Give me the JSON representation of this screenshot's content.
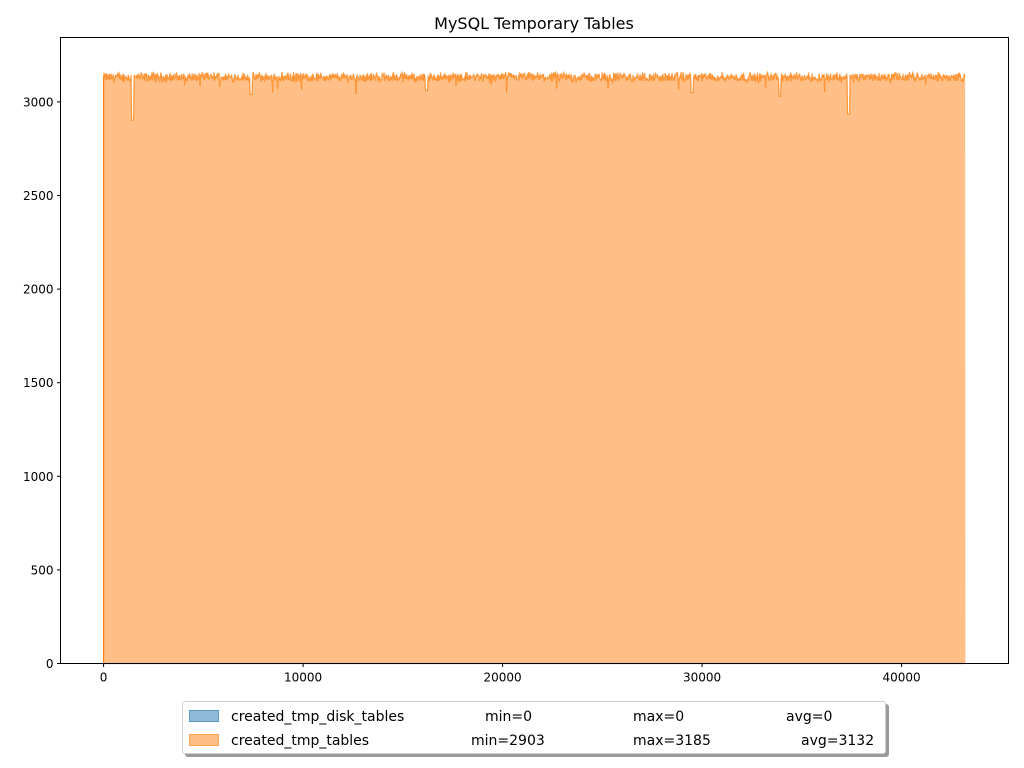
{
  "chart_data": {
    "type": "area",
    "title": "MySQL Temporary Tables",
    "xlabel": "",
    "ylabel": "",
    "xlim": [
      -2160,
      45360
    ],
    "ylim": [
      0,
      3344
    ],
    "x_ticks": [
      0,
      10000,
      20000,
      30000,
      40000
    ],
    "x_tick_labels": [
      "0",
      "10000",
      "20000",
      "30000",
      "40000"
    ],
    "y_ticks": [
      0,
      500,
      1000,
      1500,
      2000,
      2500,
      3000
    ],
    "y_tick_labels": [
      "0",
      "500",
      "1000",
      "1500",
      "2000",
      "2500",
      "3000"
    ],
    "grid": false,
    "legend_placement": "bottom-center, below plot",
    "series": [
      {
        "name": "created_tmp_disk_tables",
        "color": "#1f77b4",
        "x_range": [
          0,
          43200
        ],
        "value_constant": 0,
        "min": "min=0",
        "max": "max=0",
        "avg": "avg=0"
      },
      {
        "name": "created_tmp_tables",
        "color": "#ff7f0e",
        "x_range": [
          0,
          43200
        ],
        "baseline": 3132,
        "noise": 40,
        "dips": [
          [
            1450,
            2903
          ],
          [
            37350,
            2935
          ],
          [
            29500,
            3050
          ],
          [
            33900,
            3030
          ],
          [
            7400,
            3040
          ],
          [
            16200,
            3060
          ]
        ],
        "min": "min=2903",
        "max": "max=3185",
        "avg": "avg=3132"
      }
    ]
  }
}
